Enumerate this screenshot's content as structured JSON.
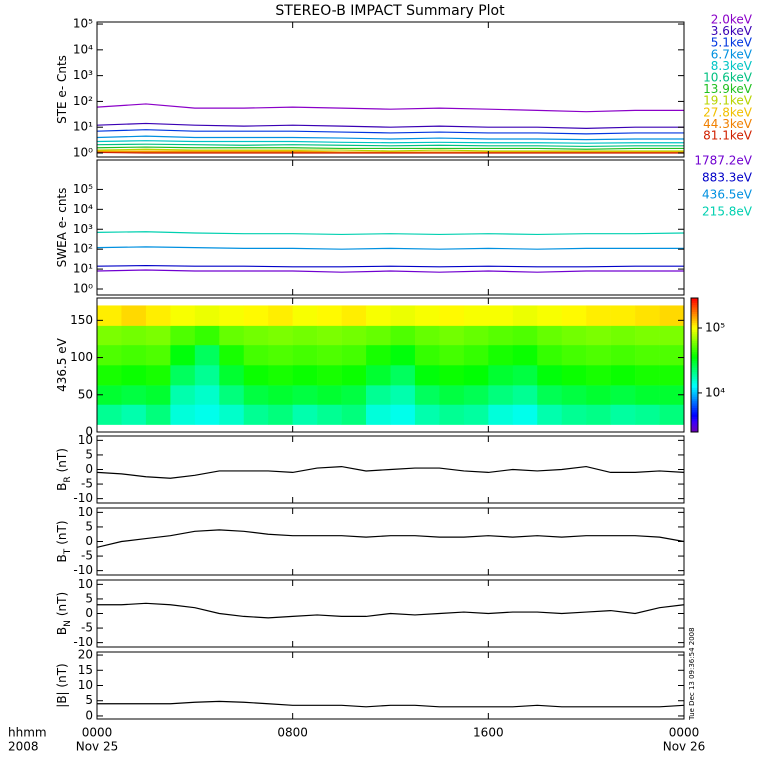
{
  "title": "STEREO-B IMPACT Summary Plot",
  "timestamp": "Tue Dec 13 09:36:54 2008",
  "x_axis": {
    "xlim": [
      0,
      24
    ],
    "xticks": [
      {
        "value": 0,
        "label": "0000"
      },
      {
        "value": 8,
        "label": "0800"
      },
      {
        "value": 16,
        "label": "1600"
      },
      {
        "value": 24,
        "label": "0000"
      }
    ],
    "date_ticks": [
      {
        "value": 0,
        "label": "Nov 25"
      },
      {
        "value": 24,
        "label": "Nov 26"
      }
    ],
    "label": "hhmm",
    "year": "2008"
  },
  "chart_data": [
    {
      "type": "line",
      "ylabel": "STE e- Cnts",
      "log_y": true,
      "legend": "right",
      "ylim": [
        0.7,
        120000
      ],
      "yticks": [
        {
          "value": 1,
          "label": "10⁰"
        },
        {
          "value": 10,
          "label": "10¹"
        },
        {
          "value": 100,
          "label": "10²"
        },
        {
          "value": 1000,
          "label": "10³"
        },
        {
          "value": 10000,
          "label": "10⁴"
        },
        {
          "value": 100000,
          "label": "10⁵"
        }
      ],
      "x": [
        0,
        2,
        4,
        6,
        8,
        10,
        12,
        14,
        16,
        18,
        20,
        22,
        24
      ],
      "series": [
        {
          "name": "2.0keV",
          "color": "#8a00c8",
          "values": [
            60,
            80,
            55,
            55,
            60,
            55,
            50,
            55,
            50,
            45,
            40,
            45,
            45
          ]
        },
        {
          "name": "3.6keV",
          "color": "#3a00b4",
          "values": [
            12,
            14,
            12,
            11,
            12,
            11,
            10,
            11,
            10,
            10,
            9,
            10,
            10
          ]
        },
        {
          "name": "5.1keV",
          "color": "#0036e0",
          "values": [
            7,
            8,
            7,
            7,
            7,
            6.5,
            6,
            6.5,
            6,
            6,
            5.5,
            6,
            6
          ]
        },
        {
          "name": "6.7keV",
          "color": "#0090e0",
          "values": [
            4,
            4.5,
            4,
            4,
            4,
            3.8,
            3.5,
            3.8,
            3.5,
            3.5,
            3.3,
            3.5,
            3.5
          ]
        },
        {
          "name": "8.3keV",
          "color": "#00c4c4",
          "values": [
            2.8,
            3,
            2.8,
            2.8,
            2.8,
            2.6,
            2.5,
            2.6,
            2.5,
            2.5,
            2.4,
            2.5,
            2.5
          ]
        },
        {
          "name": "10.6keV",
          "color": "#00c080",
          "values": [
            2.1,
            2.2,
            2.1,
            2,
            2.1,
            2,
            1.9,
            2,
            1.9,
            1.9,
            1.8,
            1.9,
            1.9
          ]
        },
        {
          "name": "13.9keV",
          "color": "#20c020",
          "values": [
            1.6,
            1.7,
            1.6,
            1.6,
            1.6,
            1.5,
            1.5,
            1.5,
            1.5,
            1.5,
            1.4,
            1.5,
            1.5
          ]
        },
        {
          "name": "19.1keV",
          "color": "#b8d400",
          "values": [
            1.3,
            1.4,
            1.3,
            1.3,
            1.3,
            1.3,
            1.2,
            1.3,
            1.2,
            1.2,
            1.2,
            1.2,
            1.2
          ]
        },
        {
          "name": "27.8keV",
          "color": "#f0c000",
          "values": [
            1.2,
            1.2,
            1.2,
            1.2,
            1.2,
            1.1,
            1.1,
            1.1,
            1.1,
            1.1,
            1.1,
            1.1,
            1.1
          ]
        },
        {
          "name": "44.3keV",
          "color": "#f08000",
          "values": [
            1.1,
            1.1,
            1.1,
            1.1,
            1.1,
            1.05,
            1.05,
            1.05,
            1.05,
            1.05,
            1.05,
            1.05,
            1.05
          ]
        },
        {
          "name": "81.1keV",
          "color": "#d02000",
          "values": [
            1.05,
            1,
            1,
            1,
            1,
            1,
            1,
            1,
            1,
            1,
            1,
            1,
            1
          ]
        }
      ]
    },
    {
      "type": "line",
      "ylabel": "SWEA e- cnts",
      "log_y": true,
      "legend": "right",
      "ylim": [
        0.5,
        3000000
      ],
      "yticks": [
        {
          "value": 1,
          "label": "10⁰"
        },
        {
          "value": 10,
          "label": "10¹"
        },
        {
          "value": 100,
          "label": "10²"
        },
        {
          "value": 1000,
          "label": "10³"
        },
        {
          "value": 10000,
          "label": "10⁴"
        },
        {
          "value": 100000,
          "label": "10⁵"
        }
      ],
      "x": [
        0,
        2,
        4,
        6,
        8,
        10,
        12,
        14,
        16,
        18,
        20,
        22,
        24
      ],
      "series": [
        {
          "name": "1787.2eV",
          "color": "#7000d0",
          "values": [
            8,
            9,
            8,
            8,
            8,
            7,
            8,
            7,
            8,
            7,
            8,
            8,
            8
          ]
        },
        {
          "name": "883.3eV",
          "color": "#0000c8",
          "values": [
            14,
            15,
            14,
            14,
            13,
            13,
            14,
            13,
            14,
            13,
            13,
            14,
            14
          ]
        },
        {
          "name": "436.5eV",
          "color": "#0090e0",
          "values": [
            120,
            130,
            120,
            110,
            110,
            100,
            110,
            100,
            110,
            100,
            110,
            110,
            110
          ]
        },
        {
          "name": "215.8eV",
          "color": "#00d0b0",
          "values": [
            700,
            750,
            650,
            600,
            600,
            550,
            600,
            550,
            600,
            550,
            600,
            600,
            650
          ]
        }
      ]
    },
    {
      "type": "heatmap",
      "ylabel": "436.5 eV",
      "ylim": [
        0,
        180
      ],
      "yticks": [
        0,
        50,
        100,
        150
      ],
      "x_bins": [
        0,
        1,
        2,
        3,
        4,
        5,
        6,
        7,
        8,
        9,
        10,
        11,
        12,
        13,
        14,
        15,
        16,
        17,
        18,
        19,
        20,
        21,
        22,
        23,
        24
      ],
      "y_bins": [
        10,
        37,
        63,
        90,
        117,
        143,
        170
      ],
      "colormap": "rainbow",
      "clim": [
        2500,
        290000
      ],
      "colorbar_ticks": [
        {
          "value": 10000,
          "label": "10⁴"
        },
        {
          "value": 100000,
          "label": "10⁵"
        }
      ],
      "z": [
        [
          20000,
          18000,
          22000,
          15000,
          14000,
          16000,
          20000,
          22000,
          18000,
          20000,
          22000,
          15000,
          14000,
          18000,
          20000,
          19000,
          15000,
          14000,
          18000,
          20000,
          21000,
          19000,
          20000,
          22000
        ],
        [
          30000,
          28000,
          30000,
          18000,
          16000,
          22000,
          28000,
          30000,
          28000,
          30000,
          28000,
          20000,
          18000,
          25000,
          28000,
          26000,
          22000,
          20000,
          26000,
          28000,
          30000,
          28000,
          30000,
          30000
        ],
        [
          40000,
          38000,
          40000,
          25000,
          20000,
          30000,
          38000,
          40000,
          38000,
          40000,
          38000,
          30000,
          25000,
          35000,
          38000,
          36000,
          30000,
          28000,
          35000,
          38000,
          40000,
          38000,
          40000,
          40000
        ],
        [
          50000,
          48000,
          50000,
          35000,
          25000,
          40000,
          48000,
          50000,
          48000,
          50000,
          48000,
          40000,
          35000,
          45000,
          48000,
          45000,
          40000,
          38000,
          45000,
          48000,
          50000,
          48000,
          50000,
          50000
        ],
        [
          60000,
          58000,
          60000,
          50000,
          45000,
          55000,
          58000,
          60000,
          58000,
          60000,
          58000,
          55000,
          50000,
          55000,
          58000,
          55000,
          52000,
          50000,
          55000,
          58000,
          60000,
          58000,
          60000,
          60000
        ],
        [
          110000,
          120000,
          110000,
          100000,
          95000,
          100000,
          105000,
          110000,
          100000,
          105000,
          110000,
          100000,
          95000,
          100000,
          105000,
          100000,
          100000,
          95000,
          100000,
          105000,
          110000,
          110000,
          115000,
          120000
        ]
      ]
    },
    {
      "type": "line",
      "ylabel": "B",
      "ylabel_sub": "R",
      "ylabel_unit": "(nT)",
      "ylim": [
        -11.5,
        11.5
      ],
      "yticks": [
        -10,
        -5,
        0,
        5,
        10
      ],
      "x": [
        0,
        1,
        2,
        3,
        4,
        5,
        6,
        7,
        8,
        9,
        10,
        11,
        12,
        13,
        14,
        15,
        16,
        17,
        18,
        19,
        20,
        21,
        22,
        23,
        24
      ],
      "series": [
        {
          "color": "#000000",
          "values": [
            -1,
            -1.5,
            -2.5,
            -3,
            -2,
            -0.5,
            -0.5,
            -0.5,
            -1,
            0.5,
            1,
            -0.5,
            0,
            0.5,
            0.5,
            -0.5,
            -1,
            0,
            -0.5,
            0,
            1,
            -1,
            -1,
            -0.5,
            -1
          ]
        }
      ]
    },
    {
      "type": "line",
      "ylabel": "B",
      "ylabel_sub": "T",
      "ylabel_unit": "(nT)",
      "ylim": [
        -11.5,
        11.5
      ],
      "yticks": [
        -10,
        -5,
        0,
        5,
        10
      ],
      "x": [
        0,
        1,
        2,
        3,
        4,
        5,
        6,
        7,
        8,
        9,
        10,
        11,
        12,
        13,
        14,
        15,
        16,
        17,
        18,
        19,
        20,
        21,
        22,
        23,
        24
      ],
      "series": [
        {
          "color": "#000000",
          "values": [
            -2,
            0,
            1,
            2,
            3.5,
            4,
            3.5,
            2.5,
            2,
            2,
            2,
            1.5,
            2,
            2,
            1.5,
            1.5,
            2,
            1.5,
            2,
            1.5,
            2,
            2,
            2,
            1.5,
            0
          ]
        }
      ]
    },
    {
      "type": "line",
      "ylabel": "B",
      "ylabel_sub": "N",
      "ylabel_unit": "(nT)",
      "ylim": [
        -11.5,
        11.5
      ],
      "yticks": [
        -10,
        -5,
        0,
        5,
        10
      ],
      "x": [
        0,
        1,
        2,
        3,
        4,
        5,
        6,
        7,
        8,
        9,
        10,
        11,
        12,
        13,
        14,
        15,
        16,
        17,
        18,
        19,
        20,
        21,
        22,
        23,
        24
      ],
      "series": [
        {
          "color": "#000000",
          "values": [
            3,
            3,
            3.5,
            3,
            2,
            0,
            -1,
            -1.5,
            -1,
            -0.5,
            -1,
            -1,
            0,
            -0.5,
            0,
            0.5,
            0,
            0.5,
            0.5,
            0,
            0.5,
            1,
            0,
            2,
            3
          ]
        }
      ]
    },
    {
      "type": "line",
      "ylabel": "|B| (nT)",
      "ylim": [
        -1,
        21
      ],
      "yticks": [
        0,
        5,
        10,
        15,
        20
      ],
      "x": [
        0,
        1,
        2,
        3,
        4,
        5,
        6,
        7,
        8,
        9,
        10,
        11,
        12,
        13,
        14,
        15,
        16,
        17,
        18,
        19,
        20,
        21,
        22,
        23,
        24
      ],
      "series": [
        {
          "color": "#000000",
          "values": [
            4,
            4,
            4,
            4,
            4.5,
            4.8,
            4.5,
            4,
            3.5,
            3.5,
            3.5,
            3,
            3.5,
            3.5,
            3,
            3,
            3,
            3,
            3.5,
            3,
            3,
            3,
            3,
            3,
            3.5
          ]
        }
      ]
    }
  ]
}
